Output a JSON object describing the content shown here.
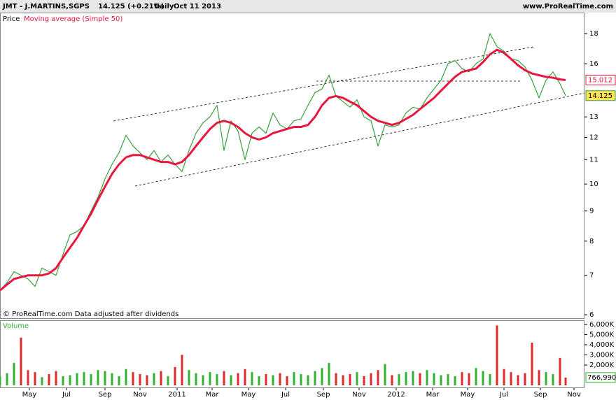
{
  "chart_data": [
    {
      "type": "line",
      "title": "JMT - J.MARTINS,SGPS",
      "quote": "14.125 (+0.21%)",
      "period": "Daily",
      "date": "Oct 11 2013",
      "source": "www.ProRealTime.com",
      "note": "© ProRealTime.com  Data adjusted after dividends",
      "log_scale": true,
      "x": [
        0,
        1,
        2,
        3,
        4,
        5,
        6,
        7,
        8,
        9,
        10,
        11,
        12,
        13,
        14,
        15,
        16,
        17,
        18,
        19,
        20,
        21,
        22,
        23,
        24,
        25,
        26,
        27,
        28,
        29,
        30,
        31,
        32,
        33,
        34,
        35,
        36,
        37,
        38,
        39,
        40,
        41,
        42,
        43,
        44,
        45,
        46,
        47,
        48,
        49,
        50,
        51,
        52,
        53,
        54,
        55,
        56,
        57,
        58,
        59,
        60,
        61,
        62,
        63,
        64,
        65,
        66,
        67,
        68,
        69,
        70,
        71,
        72,
        73,
        74,
        75,
        76,
        77,
        78,
        79,
        80,
        80.8
      ],
      "xlim": [
        0,
        83.5
      ],
      "xticks": [
        {
          "value": 4.2,
          "label": "May"
        },
        {
          "value": 9.5,
          "label": "Jul"
        },
        {
          "value": 15,
          "label": "Sep"
        },
        {
          "value": 20,
          "label": "Nov"
        },
        {
          "value": 25.3,
          "label": "2011"
        },
        {
          "value": 30.3,
          "label": "Mar"
        },
        {
          "value": 35.5,
          "label": "May"
        },
        {
          "value": 40.8,
          "label": "Jul"
        },
        {
          "value": 46.2,
          "label": "Sep"
        },
        {
          "value": 51.3,
          "label": "Nov"
        },
        {
          "value": 56.6,
          "label": "2012"
        },
        {
          "value": 61.8,
          "label": "Mar"
        },
        {
          "value": 66.8,
          "label": "May"
        },
        {
          "value": 72,
          "label": "Jul"
        },
        {
          "value": 77.2,
          "label": "Sep"
        },
        {
          "value": 82,
          "label": "Nov"
        }
      ],
      "ylim": [
        5.92,
        19.54
      ],
      "yticks": [
        6,
        7,
        8,
        9,
        10,
        11,
        12,
        13,
        16,
        18
      ],
      "series": [
        {
          "name": "Price",
          "color": "#3c9e3c",
          "values": [
            6.6,
            6.8,
            7.1,
            7.0,
            6.9,
            6.7,
            7.2,
            7.1,
            7.0,
            7.6,
            8.2,
            8.3,
            8.5,
            9.0,
            9.5,
            10.2,
            10.8,
            11.3,
            12.1,
            11.6,
            11.3,
            11.0,
            11.4,
            10.9,
            11.2,
            10.8,
            10.5,
            11.4,
            12.2,
            12.7,
            13.0,
            13.6,
            11.4,
            12.8,
            12.3,
            11.0,
            12.2,
            12.5,
            12.2,
            13.2,
            12.6,
            12.4,
            12.8,
            12.9,
            13.6,
            14.3,
            14.5,
            15.3,
            14.1,
            13.8,
            13.5,
            13.9,
            13.0,
            12.8,
            11.6,
            12.6,
            12.5,
            12.6,
            13.2,
            13.5,
            13.4,
            14.0,
            14.5,
            15.0,
            16.0,
            16.2,
            15.7,
            15.5,
            16.0,
            16.3,
            18.0,
            17.1,
            16.8,
            16.3,
            16.2,
            15.8,
            15.0,
            14.0,
            15.0,
            15.5,
            14.8,
            14.125
          ]
        },
        {
          "name": "Moving average (Simple 50)",
          "color": "#e8173f",
          "values": [
            6.6,
            6.75,
            6.9,
            6.95,
            7.0,
            7.0,
            7.0,
            7.05,
            7.2,
            7.5,
            7.8,
            8.1,
            8.5,
            8.9,
            9.4,
            9.9,
            10.4,
            10.8,
            11.1,
            11.2,
            11.2,
            11.1,
            11.0,
            10.9,
            10.9,
            10.8,
            10.9,
            11.2,
            11.6,
            12.0,
            12.4,
            12.7,
            12.8,
            12.7,
            12.5,
            12.2,
            12.0,
            11.9,
            12.0,
            12.2,
            12.3,
            12.4,
            12.5,
            12.5,
            12.6,
            13.0,
            13.6,
            14.0,
            14.1,
            14.0,
            13.8,
            13.6,
            13.3,
            13.0,
            12.8,
            12.7,
            12.6,
            12.7,
            12.9,
            13.1,
            13.4,
            13.7,
            14.0,
            14.4,
            14.8,
            15.2,
            15.5,
            15.6,
            15.7,
            16.1,
            16.6,
            16.9,
            16.7,
            16.3,
            15.9,
            15.6,
            15.4,
            15.3,
            15.2,
            15.15,
            15.05,
            15.012
          ]
        }
      ]
    },
    {
      "type": "bar",
      "title": "Volume",
      "x": [
        0,
        1,
        2,
        3,
        4,
        5,
        6,
        7,
        8,
        9,
        10,
        11,
        12,
        13,
        14,
        15,
        16,
        17,
        18,
        19,
        20,
        21,
        22,
        23,
        24,
        25,
        26,
        27,
        28,
        29,
        30,
        31,
        32,
        33,
        34,
        35,
        36,
        37,
        38,
        39,
        40,
        41,
        42,
        43,
        44,
        45,
        46,
        47,
        48,
        49,
        50,
        51,
        52,
        53,
        54,
        55,
        56,
        57,
        58,
        59,
        60,
        61,
        62,
        63,
        64,
        65,
        66,
        67,
        68,
        69,
        70,
        71,
        72,
        73,
        74,
        75,
        76,
        77,
        78,
        79,
        80,
        80.8
      ],
      "xlim": [
        0,
        83.5
      ],
      "ylim": [
        0,
        6410
      ],
      "yticks": [
        {
          "value": 2000,
          "label": "2,000K"
        },
        {
          "value": 3000,
          "label": "3,000K"
        },
        {
          "value": 4000,
          "label": "4,000K"
        },
        {
          "value": 5000,
          "label": "5,000K"
        },
        {
          "value": 6000,
          "label": "6,000K"
        }
      ],
      "colors": {
        "up": "#2fb52f",
        "down": "#e02a2a"
      },
      "values": [
        900,
        1200,
        2200,
        4700,
        1500,
        1300,
        800,
        1100,
        1400,
        900,
        1000,
        1200,
        1300,
        1100,
        1500,
        1400,
        1200,
        900,
        1600,
        1300,
        1100,
        1000,
        1200,
        1400,
        900,
        1800,
        3000,
        1500,
        1200,
        1000,
        1300,
        1100,
        1400,
        1000,
        1200,
        1600,
        1300,
        900,
        1100,
        1000,
        1200,
        900,
        1300,
        1100,
        1000,
        1400,
        1700,
        2200,
        1200,
        1000,
        1100,
        1300,
        900,
        1200,
        1500,
        2100,
        1000,
        1100,
        1300,
        1400,
        1200,
        1500,
        1200,
        1000,
        1100,
        900,
        1300,
        1200,
        1700,
        1400,
        1100,
        5900,
        1600,
        1300,
        1000,
        1200,
        4200,
        1500,
        1300,
        1100,
        2700,
        766.99
      ],
      "value_labels": [
        null,
        null,
        null,
        null,
        null,
        null,
        null,
        null,
        null,
        null,
        null,
        null,
        null,
        null,
        null,
        null,
        null,
        null,
        null,
        null,
        null,
        null,
        null,
        null,
        null,
        null,
        null,
        null,
        null,
        null,
        null,
        null,
        null,
        null,
        null,
        null,
        null,
        null,
        null,
        null,
        null,
        null,
        null,
        null,
        null,
        null,
        null,
        null,
        null,
        null,
        null,
        null,
        null,
        null,
        null,
        null,
        null,
        null,
        null,
        null,
        null,
        null,
        null,
        null,
        null,
        null,
        null,
        null,
        null,
        null,
        null,
        null,
        null,
        null,
        null,
        null,
        null,
        null,
        null,
        null,
        null,
        "766,990"
      ]
    }
  ]
}
